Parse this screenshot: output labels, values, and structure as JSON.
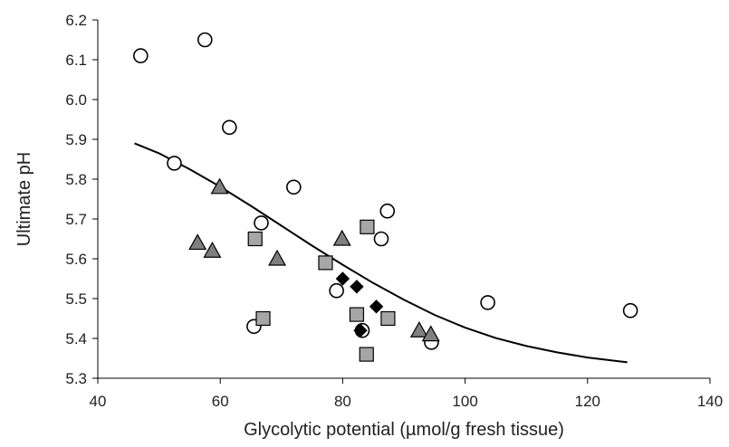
{
  "chart_data": {
    "type": "scatter",
    "title": "",
    "xlabel": "Glycolytic potential (µmol/g  fresh tissue)",
    "ylabel": "Ultimate pH",
    "xlim": [
      40,
      140
    ],
    "ylim": [
      5.3,
      6.2
    ],
    "xticks": [
      40,
      60,
      80,
      100,
      120,
      140
    ],
    "yticks": [
      5.3,
      5.4,
      5.5,
      5.6,
      5.7,
      5.8,
      5.9,
      6.0,
      6.1,
      6.2
    ],
    "x_tick_labels": [
      "40",
      "60",
      "80",
      "100",
      "120",
      "140"
    ],
    "y_tick_labels": [
      "5.3",
      "5.4",
      "5.5",
      "5.6",
      "5.7",
      "5.8",
      "5.9",
      "6.0",
      "6.1",
      "6.2"
    ],
    "grid": false,
    "legend": "none",
    "series": [
      {
        "marker": "circle-open",
        "color": "#000000",
        "points": [
          [
            47.0,
            6.11
          ],
          [
            57.5,
            6.15
          ],
          [
            52.5,
            5.84
          ],
          [
            61.5,
            5.93
          ],
          [
            72.0,
            5.78
          ],
          [
            66.7,
            5.69
          ],
          [
            65.5,
            5.43
          ],
          [
            79.0,
            5.52
          ],
          [
            83.2,
            5.42
          ],
          [
            86.3,
            5.65
          ],
          [
            87.3,
            5.72
          ],
          [
            94.5,
            5.39
          ],
          [
            103.7,
            5.49
          ],
          [
            127.0,
            5.47
          ]
        ]
      },
      {
        "marker": "triangle",
        "color": "#7f7f7f",
        "points": [
          [
            56.3,
            5.64
          ],
          [
            58.7,
            5.62
          ],
          [
            59.9,
            5.78
          ],
          [
            69.3,
            5.6
          ],
          [
            79.9,
            5.65
          ],
          [
            92.5,
            5.42
          ],
          [
            94.4,
            5.41
          ]
        ]
      },
      {
        "marker": "square",
        "color": "#a6a6a6",
        "points": [
          [
            65.7,
            5.65
          ],
          [
            67.0,
            5.45
          ],
          [
            77.2,
            5.59
          ],
          [
            82.3,
            5.46
          ],
          [
            84.0,
            5.68
          ],
          [
            87.4,
            5.45
          ],
          [
            83.9,
            5.36
          ]
        ]
      },
      {
        "marker": "diamond",
        "color": "#000000",
        "points": [
          [
            80.0,
            5.55
          ],
          [
            82.3,
            5.53
          ],
          [
            85.5,
            5.48
          ],
          [
            82.9,
            5.42
          ]
        ]
      }
    ],
    "fit_line": {
      "type": "line",
      "color": "#000000",
      "x": [
        46.0,
        50,
        55,
        60,
        65,
        70,
        75,
        80,
        85,
        90,
        95,
        100,
        105,
        110,
        115,
        120,
        126.5
      ],
      "y": [
        5.89,
        5.865,
        5.825,
        5.781,
        5.733,
        5.683,
        5.633,
        5.585,
        5.539,
        5.497,
        5.459,
        5.427,
        5.401,
        5.381,
        5.365,
        5.352,
        5.34
      ]
    }
  }
}
